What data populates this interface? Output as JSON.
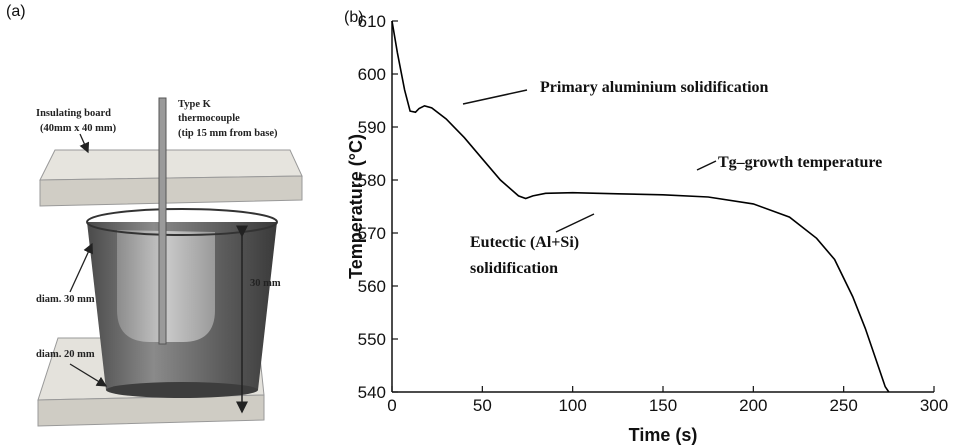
{
  "panel_a": {
    "label": "(a)",
    "labels": [
      "Insulating board",
      "(40mm x 40 mm)",
      "Type K",
      "thermocouple",
      "(tip 15 mm from base)",
      "diam. 30 mm",
      "30 mm",
      "diam. 20 mm"
    ]
  },
  "chart_data": {
    "type": "line",
    "panel_label": "(b)",
    "x_label": "Time (s)",
    "y_label": "Temperature (°C)",
    "x": [
      0,
      3,
      7,
      10,
      13,
      15,
      18,
      22,
      30,
      40,
      50,
      60,
      70,
      74,
      78,
      85,
      100,
      125,
      150,
      175,
      200,
      220,
      235,
      245,
      255,
      262,
      268,
      273,
      275
    ],
    "values": [
      610,
      604,
      597,
      593,
      592.8,
      593.5,
      594,
      593.6,
      591.5,
      588,
      584,
      580,
      577,
      576.5,
      577,
      577.5,
      577.6,
      577.4,
      577.2,
      576.8,
      575.5,
      573,
      569,
      565,
      558,
      552,
      546,
      541,
      540
    ],
    "color": "#000000",
    "xlim": [
      0,
      300
    ],
    "xticks": [
      0,
      50,
      100,
      150,
      200,
      250,
      300
    ],
    "ylim": [
      540,
      610
    ],
    "yticks": [
      540,
      550,
      560,
      570,
      580,
      590,
      600,
      610
    ],
    "annotations": [
      "Primary aluminium solidification",
      "Tg–growth temperature",
      "Eutectic (Al+Si)",
      "solidification"
    ]
  }
}
